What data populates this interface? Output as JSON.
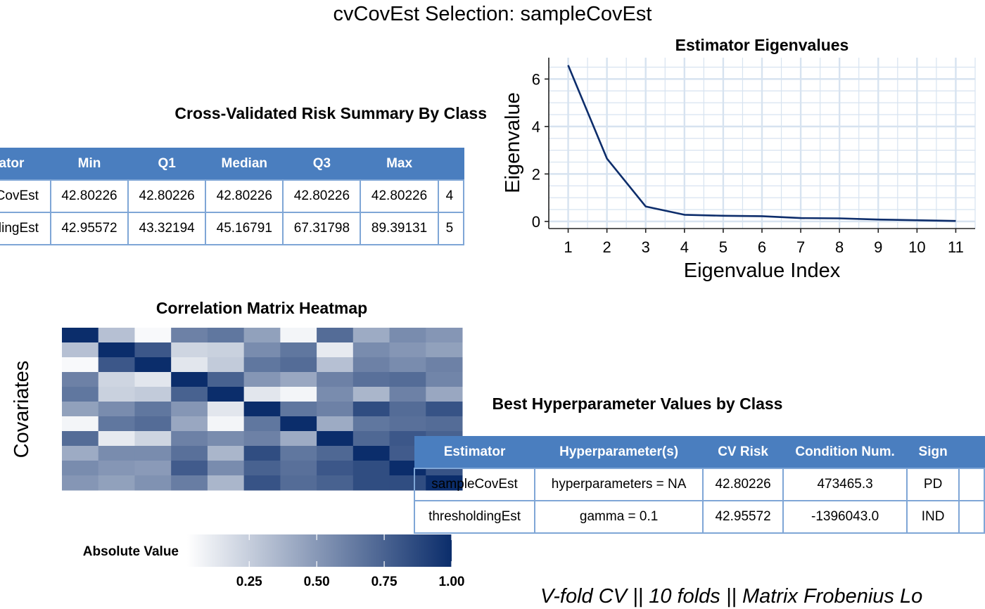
{
  "page_title": "cvCovEst Selection: sampleCovEst",
  "risk_table": {
    "title": "Cross-Validated Risk Summary By Class",
    "columns": [
      "ator",
      "Min",
      "Q1",
      "Median",
      "Q3",
      "Max",
      ""
    ],
    "rows": [
      [
        "CovEst",
        "42.80226",
        "42.80226",
        "42.80226",
        "42.80226",
        "42.80226",
        "4"
      ],
      [
        "dingEst",
        "42.95572",
        "43.32194",
        "45.16791",
        "67.31798",
        "89.39131",
        "5"
      ]
    ]
  },
  "hyper_table": {
    "title": "Best Hyperparameter Values by Class",
    "columns": [
      "Estimator",
      "Hyperparameter(s)",
      "CV Risk",
      "Condition Num.",
      "Sign",
      ""
    ],
    "rows": [
      [
        "sampleCovEst",
        "hyperparameters = NA",
        "42.80226",
        "473465.3",
        "PD",
        ""
      ],
      [
        "thresholdingEst",
        "gamma = 0.1",
        "42.95572",
        "-1396043.0",
        "IND",
        ""
      ]
    ]
  },
  "footer_text": "V-fold CV  ||  10 folds  ||  Matrix Frobenius Lo",
  "chart_data": [
    {
      "type": "line",
      "title": "Estimator Eigenvalues",
      "xlabel": "Eigenvalue Index",
      "ylabel": "Eigenvalue",
      "x": [
        1,
        2,
        3,
        4,
        5,
        6,
        7,
        8,
        9,
        10,
        11
      ],
      "y": [
        6.58,
        2.65,
        0.63,
        0.28,
        0.24,
        0.22,
        0.14,
        0.13,
        0.08,
        0.05,
        0.02
      ],
      "x_ticks": [
        "1",
        "2",
        "3",
        "4",
        "5",
        "6",
        "7",
        "8",
        "9",
        "10",
        "11"
      ],
      "y_ticks": [
        "0",
        "2",
        "4",
        "6"
      ],
      "xlim": [
        0.5,
        11.5
      ],
      "ylim": [
        -0.3,
        6.9
      ],
      "grid": true,
      "line_color": "#0d2d6b",
      "grid_color": "#d7e3f0"
    },
    {
      "type": "heatmap",
      "title": "Correlation Matrix Heatmap",
      "ylabel": "Covariates",
      "legend_title": "Absolute Value",
      "legend_ticks": [
        "0.25",
        "0.50",
        "0.75",
        "1.00"
      ],
      "legend_tick_values": [
        0.25,
        0.5,
        0.75,
        1.0
      ],
      "legend_range": [
        0.02,
        1.0
      ],
      "color_low": "#ffffff",
      "color_high": "#0b2d6b",
      "values": [
        [
          1.0,
          0.3,
          0.03,
          0.6,
          0.65,
          0.45,
          0.05,
          0.7,
          0.4,
          0.55,
          0.5
        ],
        [
          0.3,
          1.0,
          0.8,
          0.2,
          0.22,
          0.55,
          0.65,
          0.1,
          0.55,
          0.5,
          0.45
        ],
        [
          0.03,
          0.8,
          1.0,
          0.12,
          0.25,
          0.65,
          0.7,
          0.3,
          0.6,
          0.55,
          0.6
        ],
        [
          0.6,
          0.2,
          0.12,
          1.0,
          0.75,
          0.5,
          0.42,
          0.6,
          0.68,
          0.7,
          0.58
        ],
        [
          0.65,
          0.22,
          0.25,
          0.75,
          1.0,
          0.12,
          0.05,
          0.55,
          0.35,
          0.6,
          0.42
        ],
        [
          0.45,
          0.55,
          0.65,
          0.5,
          0.12,
          1.0,
          0.65,
          0.6,
          0.85,
          0.7,
          0.82
        ],
        [
          0.05,
          0.65,
          0.7,
          0.42,
          0.05,
          0.65,
          1.0,
          0.4,
          0.65,
          0.68,
          0.7
        ],
        [
          0.7,
          0.1,
          0.2,
          0.6,
          0.55,
          0.6,
          0.4,
          1.0,
          0.72,
          0.8,
          0.75
        ],
        [
          0.4,
          0.55,
          0.55,
          0.68,
          0.35,
          0.85,
          0.65,
          0.72,
          1.0,
          0.78,
          0.8
        ],
        [
          0.55,
          0.5,
          0.48,
          0.78,
          0.55,
          0.75,
          0.68,
          0.8,
          0.85,
          1.0,
          0.82
        ],
        [
          0.5,
          0.45,
          0.52,
          0.62,
          0.35,
          0.82,
          0.7,
          0.75,
          0.85,
          0.85,
          1.0
        ]
      ]
    }
  ]
}
